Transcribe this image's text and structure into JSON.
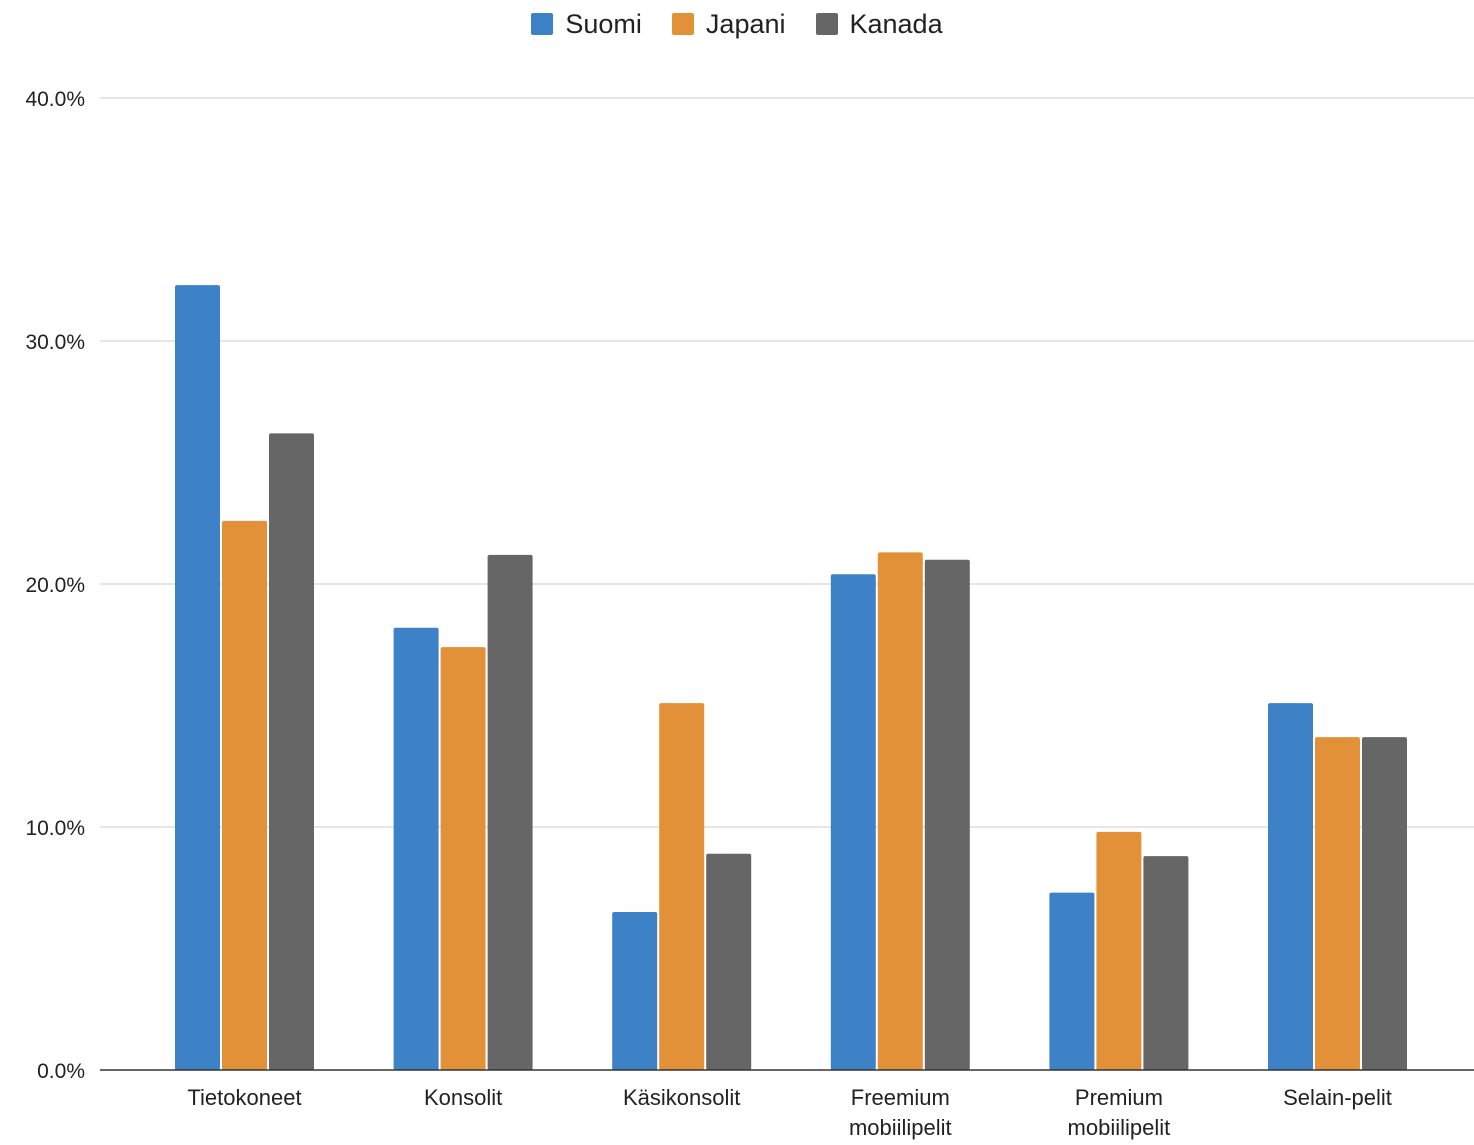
{
  "chart_data": {
    "type": "bar",
    "categories": [
      "Tietokoneet",
      "Konsolit",
      "Käsikonsolit",
      "Freemium mobiilipelit",
      "Premium mobiilipelit",
      "Selain-pelit"
    ],
    "series": [
      {
        "name": "Suomi",
        "color": "#3d82c6",
        "values": [
          32.3,
          18.2,
          6.5,
          20.4,
          7.3,
          15.1
        ]
      },
      {
        "name": "Japani",
        "color": "#e39139",
        "values": [
          22.6,
          17.4,
          15.1,
          21.3,
          9.8,
          13.7
        ]
      },
      {
        "name": "Kanada",
        "color": "#666666",
        "values": [
          26.2,
          21.2,
          8.9,
          21.0,
          8.8,
          13.7
        ]
      }
    ],
    "yticks": [
      "0.0%",
      "10.0%",
      "20.0%",
      "30.0%",
      "40.0%"
    ],
    "ylim": [
      0,
      40
    ],
    "grid": true,
    "legend_position": "top-center"
  }
}
